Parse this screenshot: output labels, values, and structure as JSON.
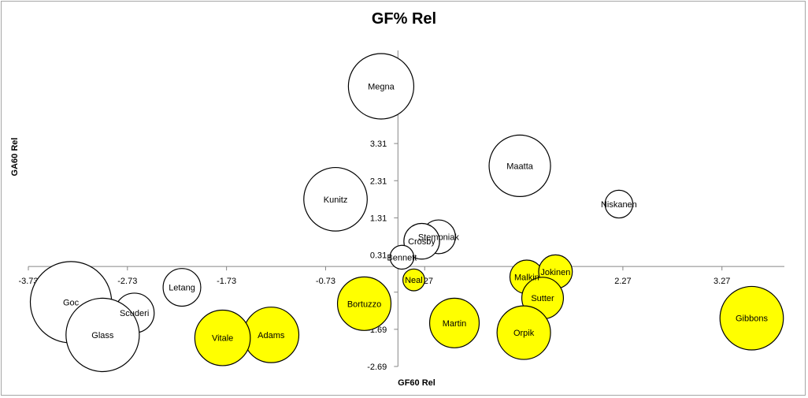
{
  "chart_data": {
    "type": "scatter",
    "title": "GF% Rel",
    "xlabel": "GF60 Rel",
    "ylabel": "GA60 Rel",
    "xlim": [
      -3.73,
      3.9
    ],
    "ylim": [
      -2.69,
      5.9
    ],
    "xticks": [
      "-3.73",
      "-2.73",
      "-1.73",
      "-0.73",
      "0.27",
      "1.27",
      "2.27",
      "3.27"
    ],
    "xtick_values": [
      -3.73,
      -2.73,
      -1.73,
      -0.73,
      0.27,
      1.27,
      2.27,
      3.27
    ],
    "yticks": [
      "-2.69",
      "-1.69",
      "-0.69",
      "0.31",
      "1.31",
      "2.31",
      "3.31",
      "4.31",
      "5.31"
    ],
    "ytick_values": [
      -2.69,
      -1.69,
      -0.69,
      0.31,
      1.31,
      2.31,
      3.31,
      4.31,
      5.31
    ],
    "grid": false,
    "legend": "none",
    "colors": {
      "white_fill": "#ffffff",
      "yellow_fill": "#ffff00",
      "outline": "#000000",
      "axis": "#868686"
    },
    "points": [
      {
        "name": "Megna",
        "x": -0.17,
        "y": 4.85,
        "r": 0.33,
        "fill": "white"
      },
      {
        "name": "Maatta",
        "x": 1.23,
        "y": 2.71,
        "r": 0.31,
        "fill": "white"
      },
      {
        "name": "Kunitz",
        "x": -0.63,
        "y": 1.81,
        "r": 0.32,
        "fill": "white"
      },
      {
        "name": "Niskanen",
        "x": 2.23,
        "y": 1.68,
        "r": 0.14,
        "fill": "white"
      },
      {
        "name": "Stempniak",
        "x": 0.41,
        "y": 0.8,
        "r": 0.17,
        "fill": "white"
      },
      {
        "name": "Crosby",
        "x": 0.24,
        "y": 0.68,
        "r": 0.18,
        "fill": "white"
      },
      {
        "name": "Bennett",
        "x": 0.04,
        "y": 0.25,
        "r": 0.12,
        "fill": "white"
      },
      {
        "name": "Neal",
        "x": 0.16,
        "y": -0.36,
        "r": 0.11,
        "fill": "yellow"
      },
      {
        "name": "Malkin",
        "x": 1.3,
        "y": -0.28,
        "r": 0.17,
        "fill": "yellow"
      },
      {
        "name": "Jokinen",
        "x": 1.59,
        "y": -0.14,
        "r": 0.17,
        "fill": "yellow"
      },
      {
        "name": "Letang",
        "x": -2.18,
        "y": -0.56,
        "r": 0.19,
        "fill": "white"
      },
      {
        "name": "Sutter",
        "x": 1.46,
        "y": -0.85,
        "r": 0.21,
        "fill": "yellow"
      },
      {
        "name": "Bortuzzo",
        "x": -0.34,
        "y": -1.0,
        "r": 0.27,
        "fill": "yellow"
      },
      {
        "name": "Goc",
        "x": -3.3,
        "y": -0.96,
        "r": 0.41,
        "fill": "white"
      },
      {
        "name": "Scuderi",
        "x": -2.66,
        "y": -1.25,
        "r": 0.2,
        "fill": "white"
      },
      {
        "name": "Glass",
        "x": -2.98,
        "y": -1.84,
        "r": 0.37,
        "fill": "white"
      },
      {
        "name": "Martin",
        "x": 0.57,
        "y": -1.52,
        "r": 0.25,
        "fill": "yellow"
      },
      {
        "name": "Orpik",
        "x": 1.27,
        "y": -1.78,
        "r": 0.27,
        "fill": "yellow"
      },
      {
        "name": "Adams",
        "x": -1.28,
        "y": -1.84,
        "r": 0.28,
        "fill": "yellow"
      },
      {
        "name": "Vitale",
        "x": -1.77,
        "y": -1.92,
        "r": 0.28,
        "fill": "yellow"
      },
      {
        "name": "Gibbons",
        "x": 3.57,
        "y": -1.39,
        "r": 0.32,
        "fill": "yellow"
      }
    ]
  }
}
